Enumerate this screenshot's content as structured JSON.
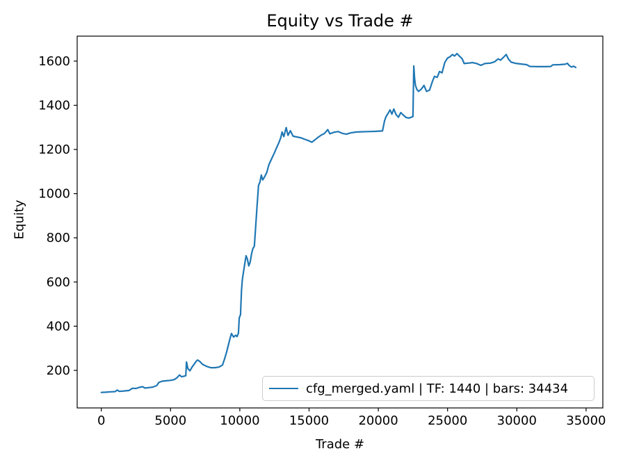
{
  "chart_data": {
    "type": "line",
    "title": "Equity vs Trade #",
    "xlabel": "Trade #",
    "ylabel": "Equity",
    "xlim": [
      -1742,
      36210
    ],
    "ylim": [
      30,
      1713
    ],
    "x_ticks": [
      0,
      5000,
      10000,
      15000,
      20000,
      25000,
      30000,
      35000
    ],
    "y_ticks": [
      200,
      400,
      600,
      800,
      1000,
      1200,
      1400,
      1600
    ],
    "grid": false,
    "axis_color": "#000000",
    "background": "#ffffff",
    "legend": {
      "position": "lower right",
      "entries": [
        "cfg_merged.yaml | TF: 1440 | bars: 34434"
      ]
    },
    "series": [
      {
        "name": "cfg_merged.yaml | TF: 1440 | bars: 34434",
        "color": "#1f77b4",
        "points": [
          [
            0,
            100
          ],
          [
            300,
            101
          ],
          [
            700,
            103
          ],
          [
            1000,
            104
          ],
          [
            1150,
            111
          ],
          [
            1300,
            105
          ],
          [
            1700,
            107
          ],
          [
            2000,
            109
          ],
          [
            2250,
            119
          ],
          [
            2500,
            118
          ],
          [
            2800,
            124
          ],
          [
            3000,
            126
          ],
          [
            3150,
            120
          ],
          [
            3400,
            122
          ],
          [
            3700,
            124
          ],
          [
            4000,
            131
          ],
          [
            4150,
            145
          ],
          [
            4400,
            151
          ],
          [
            4700,
            153
          ],
          [
            5000,
            155
          ],
          [
            5250,
            158
          ],
          [
            5450,
            166
          ],
          [
            5650,
            179
          ],
          [
            5800,
            171
          ],
          [
            6000,
            174
          ],
          [
            6100,
            176
          ],
          [
            6150,
            238
          ],
          [
            6250,
            208
          ],
          [
            6400,
            198
          ],
          [
            6550,
            215
          ],
          [
            6700,
            228
          ],
          [
            6850,
            241
          ],
          [
            6950,
            247
          ],
          [
            7100,
            241
          ],
          [
            7300,
            228
          ],
          [
            7600,
            218
          ],
          [
            7900,
            212
          ],
          [
            8200,
            212
          ],
          [
            8500,
            215
          ],
          [
            8750,
            224
          ],
          [
            8900,
            252
          ],
          [
            9050,
            284
          ],
          [
            9200,
            322
          ],
          [
            9300,
            346
          ],
          [
            9400,
            367
          ],
          [
            9550,
            351
          ],
          [
            9700,
            359
          ],
          [
            9800,
            353
          ],
          [
            9900,
            368
          ],
          [
            9960,
            438
          ],
          [
            10050,
            452
          ],
          [
            10120,
            560
          ],
          [
            10180,
            610
          ],
          [
            10280,
            652
          ],
          [
            10380,
            692
          ],
          [
            10450,
            719
          ],
          [
            10550,
            702
          ],
          [
            10650,
            673
          ],
          [
            10750,
            690
          ],
          [
            10850,
            728
          ],
          [
            10950,
            752
          ],
          [
            11050,
            762
          ],
          [
            11150,
            855
          ],
          [
            11250,
            948
          ],
          [
            11350,
            1037
          ],
          [
            11450,
            1052
          ],
          [
            11550,
            1084
          ],
          [
            11650,
            1062
          ],
          [
            11800,
            1078
          ],
          [
            11950,
            1096
          ],
          [
            12100,
            1131
          ],
          [
            12300,
            1158
          ],
          [
            12500,
            1185
          ],
          [
            12650,
            1207
          ],
          [
            12800,
            1228
          ],
          [
            12950,
            1252
          ],
          [
            13050,
            1279
          ],
          [
            13180,
            1258
          ],
          [
            13350,
            1299
          ],
          [
            13480,
            1264
          ],
          [
            13650,
            1285
          ],
          [
            13850,
            1260
          ],
          [
            14100,
            1257
          ],
          [
            14400,
            1253
          ],
          [
            14700,
            1246
          ],
          [
            15000,
            1239
          ],
          [
            15200,
            1233
          ],
          [
            15450,
            1245
          ],
          [
            15650,
            1255
          ],
          [
            15900,
            1266
          ],
          [
            16100,
            1272
          ],
          [
            16350,
            1290
          ],
          [
            16500,
            1271
          ],
          [
            16800,
            1278
          ],
          [
            17100,
            1281
          ],
          [
            17400,
            1273
          ],
          [
            17700,
            1269
          ],
          [
            18000,
            1275
          ],
          [
            18400,
            1279
          ],
          [
            18800,
            1280
          ],
          [
            19300,
            1281
          ],
          [
            19800,
            1282
          ],
          [
            20300,
            1284
          ],
          [
            20450,
            1330
          ],
          [
            20550,
            1348
          ],
          [
            20700,
            1363
          ],
          [
            20850,
            1379
          ],
          [
            20980,
            1360
          ],
          [
            21120,
            1383
          ],
          [
            21280,
            1358
          ],
          [
            21450,
            1346
          ],
          [
            21620,
            1367
          ],
          [
            21800,
            1356
          ],
          [
            22000,
            1345
          ],
          [
            22200,
            1342
          ],
          [
            22380,
            1346
          ],
          [
            22500,
            1349
          ],
          [
            22560,
            1578
          ],
          [
            22620,
            1520
          ],
          [
            22680,
            1490
          ],
          [
            22780,
            1472
          ],
          [
            22900,
            1463
          ],
          [
            23100,
            1473
          ],
          [
            23300,
            1490
          ],
          [
            23480,
            1463
          ],
          [
            23700,
            1469
          ],
          [
            23900,
            1507
          ],
          [
            24050,
            1531
          ],
          [
            24250,
            1526
          ],
          [
            24420,
            1553
          ],
          [
            24600,
            1547
          ],
          [
            24800,
            1594
          ],
          [
            25000,
            1614
          ],
          [
            25180,
            1620
          ],
          [
            25350,
            1630
          ],
          [
            25500,
            1623
          ],
          [
            25680,
            1634
          ],
          [
            25880,
            1621
          ],
          [
            26050,
            1611
          ],
          [
            26200,
            1589
          ],
          [
            26500,
            1591
          ],
          [
            26800,
            1593
          ],
          [
            27100,
            1589
          ],
          [
            27400,
            1581
          ],
          [
            27700,
            1589
          ],
          [
            28100,
            1591
          ],
          [
            28400,
            1597
          ],
          [
            28650,
            1610
          ],
          [
            28820,
            1604
          ],
          [
            29000,
            1615
          ],
          [
            29230,
            1630
          ],
          [
            29400,
            1609
          ],
          [
            29600,
            1595
          ],
          [
            29900,
            1590
          ],
          [
            30300,
            1587
          ],
          [
            30700,
            1584
          ],
          [
            30950,
            1576
          ],
          [
            31500,
            1575
          ],
          [
            32100,
            1575
          ],
          [
            32450,
            1576
          ],
          [
            32600,
            1583
          ],
          [
            33100,
            1584
          ],
          [
            33500,
            1586
          ],
          [
            33650,
            1590
          ],
          [
            33800,
            1579
          ],
          [
            33950,
            1573
          ],
          [
            34100,
            1577
          ],
          [
            34250,
            1571
          ]
        ]
      }
    ]
  }
}
